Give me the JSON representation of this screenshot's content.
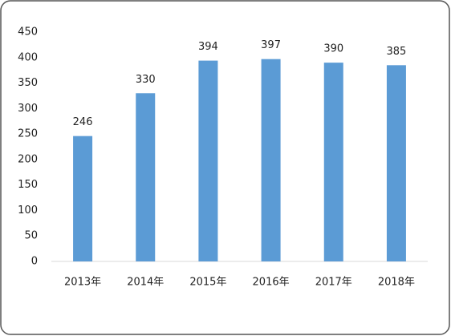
{
  "chart_data": {
    "type": "bar",
    "categories": [
      "2013年",
      "2014年",
      "2015年",
      "2016年",
      "2017年",
      "2018年"
    ],
    "values": [
      246,
      330,
      394,
      397,
      390,
      385
    ],
    "color": "#5b9bd5",
    "ylim": [
      0,
      450
    ],
    "yticks": [
      0,
      50,
      100,
      150,
      200,
      250,
      300,
      350,
      400,
      450
    ],
    "grid": false
  }
}
